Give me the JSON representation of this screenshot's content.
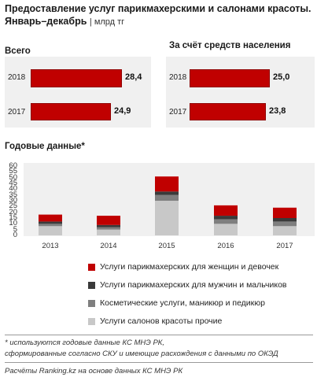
{
  "title_line1": "Предоставление услуг парикмахерскими и салонами красоты.",
  "title_line2": "Январь–декабрь",
  "title_unit": "млрд тг",
  "chart_data": [
    {
      "type": "bar",
      "orientation": "horizontal",
      "title": "Всего",
      "categories": [
        "2018",
        "2017"
      ],
      "values": [
        28.4,
        24.9
      ],
      "value_labels": [
        "28,4",
        "24,9"
      ],
      "color": "#c00000"
    },
    {
      "type": "bar",
      "orientation": "horizontal",
      "title": "За счёт средств населения",
      "categories": [
        "2018",
        "2017"
      ],
      "values": [
        25.0,
        23.8
      ],
      "value_labels": [
        "25,0",
        "23,8"
      ],
      "color": "#c00000"
    },
    {
      "type": "bar",
      "stacked": true,
      "title": "Годовые данные*",
      "categories": [
        "2013",
        "2014",
        "2015",
        "2016",
        "2017"
      ],
      "ylim": [
        0,
        60
      ],
      "yticks": [
        0,
        5,
        10,
        15,
        20,
        25,
        30,
        35,
        40,
        45,
        50,
        55,
        60
      ],
      "grid": false,
      "legend_position": "bottom",
      "series": [
        {
          "name": "Услуги салонов красоты прочие",
          "color": "#c8c8c8",
          "values": [
            8,
            5,
            30,
            10,
            8
          ]
        },
        {
          "name": "Косметические услуги, маникюр и педикюр",
          "color": "#7f7f7f",
          "values": [
            2,
            2,
            5,
            4,
            4
          ]
        },
        {
          "name": "Услуги парикмахерских для мужчин и мальчиков",
          "color": "#3a3a3a",
          "values": [
            2,
            2,
            3,
            3,
            3
          ]
        },
        {
          "name": "Услуги парикмахерских для женщин и девочек",
          "color": "#c00000",
          "values": [
            6,
            8,
            13,
            9,
            9
          ]
        }
      ]
    }
  ],
  "footnote_line1": "* используются годовые данные КС МНЭ РК,",
  "footnote_line2": "сформированные согласно СКУ и имеющие расхождения с данными по ОКЭД",
  "source": "Расчёты Ranking.kz на основе данных КС МНЭ РК"
}
